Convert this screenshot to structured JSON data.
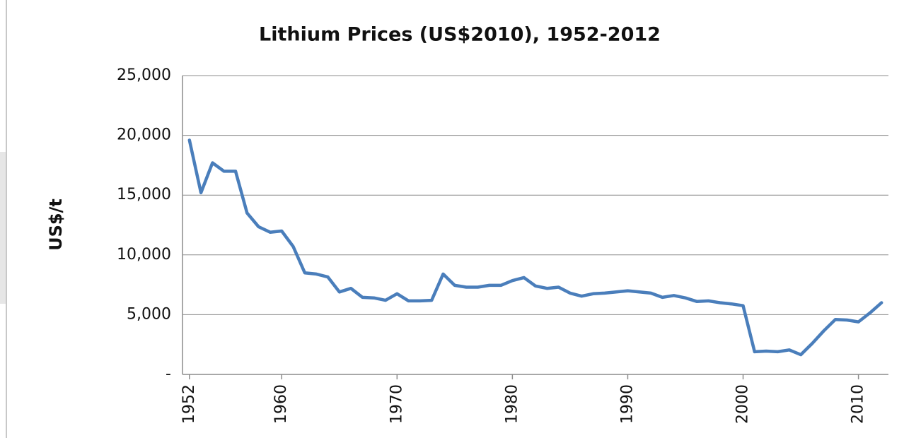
{
  "chart_data": {
    "type": "line",
    "title": "Lithium Prices (US$2010), 1952-2012",
    "y_label": "US$/t",
    "x": [
      1952,
      1953,
      1954,
      1955,
      1956,
      1957,
      1958,
      1959,
      1960,
      1961,
      1962,
      1963,
      1964,
      1965,
      1966,
      1967,
      1968,
      1969,
      1970,
      1971,
      1972,
      1973,
      1974,
      1975,
      1976,
      1977,
      1978,
      1979,
      1980,
      1981,
      1982,
      1983,
      1984,
      1985,
      1986,
      1987,
      1988,
      1989,
      1990,
      1991,
      1992,
      1993,
      1994,
      1995,
      1996,
      1997,
      1998,
      1999,
      2000,
      2001,
      2002,
      2003,
      2004,
      2005,
      2006,
      2007,
      2008,
      2009,
      2010,
      2011,
      2012
    ],
    "values": [
      19600,
      15200,
      17700,
      17000,
      17000,
      13500,
      12350,
      11900,
      12000,
      10700,
      8500,
      8400,
      8150,
      6900,
      7200,
      6450,
      6400,
      6200,
      6750,
      6150,
      6150,
      6200,
      8400,
      7450,
      7300,
      7300,
      7450,
      7450,
      7850,
      8100,
      7400,
      7200,
      7300,
      6800,
      6550,
      6750,
      6800,
      6900,
      7000,
      6900,
      6800,
      6450,
      6600,
      6400,
      6100,
      6150,
      6000,
      5900,
      5750,
      1900,
      1950,
      1900,
      2050,
      1650,
      2600,
      3650,
      4600,
      4550,
      4400,
      5150,
      6000
    ],
    "color": "#4a7ebb",
    "xlim": [
      1951.4,
      2012.6
    ],
    "xticks": [
      1952,
      1960,
      1970,
      1980,
      1990,
      2000,
      2010
    ],
    "ylim": [
      0,
      25000
    ],
    "yticks": [
      {
        "value": 0,
        "label": "-"
      },
      {
        "value": 5000,
        "label": "5,000"
      },
      {
        "value": 10000,
        "label": "10,000"
      },
      {
        "value": 15000,
        "label": "15,000"
      },
      {
        "value": 20000,
        "label": "20,000"
      },
      {
        "value": 25000,
        "label": "25,000"
      }
    ],
    "grid": true
  }
}
